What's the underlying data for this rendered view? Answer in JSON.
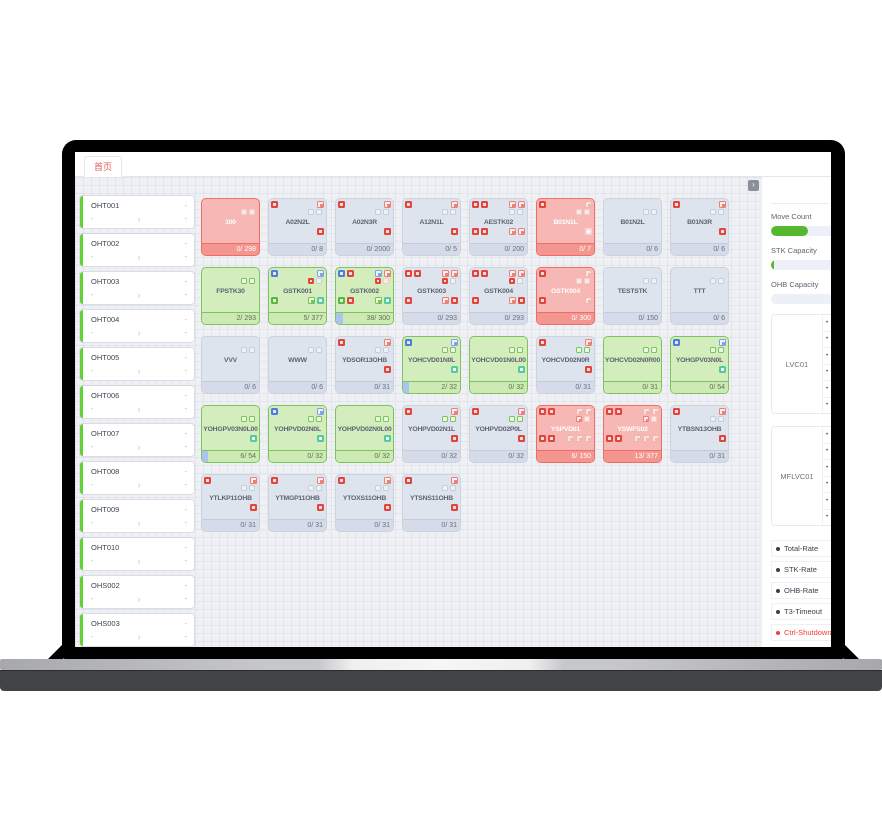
{
  "tab": {
    "label": "首页"
  },
  "left_panel": {
    "dash": "-",
    "chevron": "›",
    "items": [
      "OHT001",
      "OHT002",
      "OHT003",
      "OHT004",
      "OHT005",
      "OHT006",
      "OHT007",
      "OHT008",
      "OHT009",
      "OHT010",
      "OHS002",
      "OHS003"
    ]
  },
  "grid": {
    "cards": [
      {
        "label": "300",
        "state": "alarm",
        "count": "0/ 298",
        "tl": [],
        "tr": [],
        "mid": [
          "qw",
          "qw"
        ],
        "bl": [],
        "br": []
      },
      {
        "label": "A02N2L",
        "state": "idle",
        "count": "0/ 8",
        "tl": [
          "r"
        ],
        "tr": [
          "ro"
        ],
        "mid": [
          "q",
          "q"
        ],
        "bl": [],
        "br": [
          "r"
        ]
      },
      {
        "label": "A02N3R",
        "state": "idle",
        "count": "0/ 2000",
        "tl": [
          "r"
        ],
        "tr": [
          "ro"
        ],
        "mid": [
          "q",
          "q"
        ],
        "bl": [],
        "br": [
          "r"
        ]
      },
      {
        "label": "A12N1L",
        "state": "idle",
        "count": "0/ 5",
        "tl": [
          "r"
        ],
        "tr": [
          "ro"
        ],
        "mid": [
          "q",
          "q"
        ],
        "bl": [],
        "br": [
          "r"
        ]
      },
      {
        "label": "AESTK02",
        "state": "idle",
        "count": "0/ 200",
        "tl": [
          "r",
          "r"
        ],
        "tr": [
          "ro",
          "ro"
        ],
        "mid": [
          "q",
          "q"
        ],
        "bl": [
          "r",
          "r"
        ],
        "br": [
          "ro",
          "ro"
        ]
      },
      {
        "label": "B01N1L",
        "state": "alarm",
        "count": "0/ 7",
        "tl": [
          "r"
        ],
        "tr": [
          "wo"
        ],
        "mid": [
          "qw",
          "qw"
        ],
        "bl": [],
        "br": [
          "w"
        ]
      },
      {
        "label": "B01N2L",
        "state": "idle",
        "count": "0/ 6",
        "tl": [],
        "tr": [],
        "mid": [
          "q",
          "q"
        ],
        "bl": [],
        "br": []
      },
      {
        "label": "B01N3R",
        "state": "idle",
        "count": "0/ 6",
        "tl": [
          "r"
        ],
        "tr": [
          "ro"
        ],
        "mid": [
          "q",
          "q"
        ],
        "bl": [],
        "br": [
          "r"
        ]
      },
      {
        "label": "FPSTK30",
        "state": "ok",
        "count": "2/ 293",
        "tl": [],
        "tr": [],
        "mid": [
          "qg",
          "qg"
        ],
        "bl": [],
        "br": []
      },
      {
        "label": "GSTK001",
        "state": "ok",
        "count": "5/ 377",
        "tl": [
          "b"
        ],
        "tr": [
          "bo"
        ],
        "mid": [
          "r",
          "q"
        ],
        "bl": [
          "g"
        ],
        "br": [
          "go",
          "t"
        ]
      },
      {
        "label": "GSTK002",
        "state": "ok",
        "count": "38/ 300",
        "prog": true,
        "tl": [
          "b",
          "r"
        ],
        "tr": [
          "bo",
          "ro"
        ],
        "mid": [
          "r",
          "qw"
        ],
        "bl": [
          "g",
          "r"
        ],
        "br": [
          "go",
          "t"
        ]
      },
      {
        "label": "GSTK003",
        "state": "idle",
        "count": "0/ 293",
        "tl": [
          "r",
          "r"
        ],
        "tr": [
          "ro",
          "ro"
        ],
        "mid": [
          "r",
          "q"
        ],
        "bl": [
          "r"
        ],
        "br": [
          "ro",
          "r"
        ]
      },
      {
        "label": "GSTK004",
        "state": "idle",
        "count": "0/ 293",
        "tl": [
          "r",
          "r"
        ],
        "tr": [
          "ro",
          "ro"
        ],
        "mid": [
          "r",
          "q"
        ],
        "bl": [
          "r"
        ],
        "br": [
          "ro",
          "r"
        ]
      },
      {
        "label": "GSTK904",
        "state": "alarm",
        "count": "0/ 300",
        "tl": [
          "r"
        ],
        "tr": [
          "wo"
        ],
        "mid": [
          "qw",
          "qw"
        ],
        "bl": [
          "r"
        ],
        "br": [
          "wo"
        ]
      },
      {
        "label": "TESTSTK",
        "state": "idle",
        "count": "0/ 150",
        "tl": [],
        "tr": [],
        "mid": [
          "q",
          "q"
        ],
        "bl": [],
        "br": []
      },
      {
        "label": "TTT",
        "state": "idle",
        "count": "0/ 6",
        "tl": [],
        "tr": [],
        "mid": [
          "q",
          "q"
        ],
        "bl": [],
        "br": []
      },
      {
        "label": "VVV",
        "state": "idle",
        "count": "0/ 6",
        "tl": [],
        "tr": [],
        "mid": [
          "q",
          "q"
        ],
        "bl": [],
        "br": []
      },
      {
        "label": "WWW",
        "state": "idle",
        "count": "0/ 6",
        "tl": [],
        "tr": [],
        "mid": [
          "q",
          "q"
        ],
        "bl": [],
        "br": []
      },
      {
        "label": "YDSOR13OHB",
        "state": "idle",
        "count": "0/ 31",
        "tl": [
          "r"
        ],
        "tr": [
          "ro"
        ],
        "mid": [
          "q",
          "q"
        ],
        "bl": [],
        "br": [
          "r"
        ]
      },
      {
        "label": "YOHCVD01N0L",
        "state": "ok",
        "count": "2/ 32",
        "prog": true,
        "tl": [
          "b"
        ],
        "tr": [
          "bo"
        ],
        "mid": [
          "qg",
          "qg"
        ],
        "bl": [],
        "br": [
          "t"
        ]
      },
      {
        "label": "YOHCVD01N0L00",
        "state": "ok",
        "count": "0/ 32",
        "tl": [],
        "tr": [],
        "mid": [
          "qg",
          "qg"
        ],
        "bl": [],
        "br": [
          "t"
        ]
      },
      {
        "label": "YOHCVD02N0R",
        "state": "idle",
        "count": "0/ 31",
        "tl": [
          "r"
        ],
        "tr": [
          "ro"
        ],
        "mid": [
          "qg",
          "qg"
        ],
        "bl": [],
        "br": [
          "r"
        ]
      },
      {
        "label": "YOHCVD02N0R00",
        "state": "ok",
        "count": "0/ 31",
        "tl": [],
        "tr": [],
        "mid": [
          "qg",
          "qg"
        ],
        "bl": [],
        "br": []
      },
      {
        "label": "YOHGPV03N0L",
        "state": "ok",
        "count": "0/ 54",
        "tl": [
          "b"
        ],
        "tr": [
          "bo"
        ],
        "mid": [
          "qg",
          "qg"
        ],
        "bl": [],
        "br": [
          "t"
        ]
      },
      {
        "label": "YOHGPV03N0L00",
        "state": "ok",
        "count": "6/ 54",
        "prog": true,
        "tl": [],
        "tr": [],
        "mid": [
          "qg",
          "qg"
        ],
        "bl": [],
        "br": [
          "t"
        ]
      },
      {
        "label": "YOHPVD02N0L",
        "state": "ok",
        "count": "0/ 32",
        "tl": [
          "b"
        ],
        "tr": [
          "bo"
        ],
        "mid": [
          "qg",
          "qg"
        ],
        "bl": [],
        "br": [
          "t"
        ]
      },
      {
        "label": "YOHPVD02N0L00",
        "state": "ok",
        "count": "0/ 32",
        "tl": [],
        "tr": [],
        "mid": [
          "qg",
          "qg"
        ],
        "bl": [],
        "br": [
          "t"
        ]
      },
      {
        "label": "YOHPVD02N1L",
        "state": "idle",
        "count": "0/ 32",
        "tl": [
          "r"
        ],
        "tr": [
          "ro"
        ],
        "mid": [
          "qg",
          "qg"
        ],
        "bl": [],
        "br": [
          "r"
        ]
      },
      {
        "label": "YOHPVD02P0L",
        "state": "idle",
        "count": "0/ 32",
        "tl": [
          "r"
        ],
        "tr": [
          "ro"
        ],
        "mid": [
          "qg",
          "qg"
        ],
        "bl": [],
        "br": [
          "r"
        ]
      },
      {
        "label": "YSPVD01",
        "state": "alarm",
        "count": "6/ 150",
        "tl": [
          "r",
          "r"
        ],
        "tr": [
          "wo",
          "wo"
        ],
        "mid": [
          "ro",
          "qw"
        ],
        "bl": [
          "r",
          "r"
        ],
        "br": [
          "wo",
          "wo",
          "wo"
        ]
      },
      {
        "label": "YSWFS02",
        "state": "alarm",
        "count": "13/ 377",
        "tl": [
          "r",
          "r"
        ],
        "tr": [
          "wo",
          "wo"
        ],
        "mid": [
          "ro",
          "qw"
        ],
        "bl": [
          "r",
          "r"
        ],
        "br": [
          "wo",
          "wo",
          "wo"
        ]
      },
      {
        "label": "YTBSN13OHB",
        "state": "idle",
        "count": "0/ 31",
        "tl": [
          "r"
        ],
        "tr": [
          "ro"
        ],
        "mid": [
          "q",
          "q"
        ],
        "bl": [],
        "br": [
          "r"
        ]
      },
      {
        "label": "YTLKP11OHB",
        "state": "idle",
        "count": "0/ 31",
        "tl": [
          "r"
        ],
        "tr": [
          "ro"
        ],
        "mid": [
          "q",
          "q"
        ],
        "bl": [],
        "br": [
          "r"
        ]
      },
      {
        "label": "YTMGP11OHB",
        "state": "idle",
        "count": "0/ 31",
        "tl": [
          "r"
        ],
        "tr": [
          "ro"
        ],
        "mid": [
          "q",
          "q"
        ],
        "bl": [],
        "br": [
          "r"
        ]
      },
      {
        "label": "YTOXS11OHB",
        "state": "idle",
        "count": "0/ 31",
        "tl": [
          "r"
        ],
        "tr": [
          "ro"
        ],
        "mid": [
          "q",
          "q"
        ],
        "bl": [],
        "br": [
          "r"
        ]
      },
      {
        "label": "YTSNS11OHB",
        "state": "idle",
        "count": "0/ 31",
        "tl": [
          "r"
        ],
        "tr": [
          "ro"
        ],
        "mid": [
          "q",
          "q"
        ],
        "bl": [],
        "br": [
          "r"
        ]
      }
    ]
  },
  "right_panel": {
    "collapse_icon": "›",
    "box_bullet": "•",
    "sections": [
      {
        "label": "Move Count",
        "fill_pct": 52,
        "fill_color": "#55b82e"
      },
      {
        "label": "STK Capacity",
        "fill_pct": 4,
        "fill_color": "#55b82e"
      },
      {
        "label": "OHB Capacity",
        "fill_pct": 0,
        "fill_color": "#55b82e"
      }
    ],
    "boxes": [
      {
        "label": "LVC01",
        "rows": 6
      },
      {
        "label": "MFLVC01",
        "rows": 6
      }
    ],
    "legend": [
      {
        "label": "Total-Rate",
        "color": "#3a3e45"
      },
      {
        "label": "STK-Rate",
        "color": "#3a3e45"
      },
      {
        "label": "OHB-Rate",
        "color": "#3a3e45"
      },
      {
        "label": "T3-Timeout",
        "color": "#3a3e45"
      },
      {
        "label": "Ctrl-Shutdown",
        "color": "#f23c3c"
      }
    ]
  },
  "colors": {
    "alarm": "#ee6e66",
    "ok": "#7cc45f",
    "idle_border": "#ccd3e0",
    "progress": "#a8c4ef",
    "accent_green": "#55b82e",
    "tab_active": "#e25a5a",
    "legend_alert": "#f23c3c"
  }
}
